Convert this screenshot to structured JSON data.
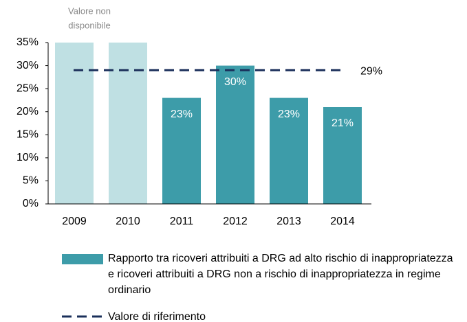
{
  "chart_data": {
    "type": "bar",
    "annotation": [
      "Valore non",
      "disponibile"
    ],
    "categories": [
      "2009",
      "2010",
      "2011",
      "2012",
      "2013",
      "2014"
    ],
    "series": [
      {
        "name": "Rapporto tra ricoveri attribuiti a DRG ad alto rischio di inappropriatezza e ricoveri attribuiti a DRG non a rischio di inappropriatezza in regime ordinario",
        "color": "#3d9ca9",
        "unavailable_color": "#bfe0e3",
        "values": [
          null,
          null,
          23,
          30,
          23,
          21
        ],
        "value_labels": [
          null,
          null,
          "23%",
          "30%",
          "23%",
          "21%"
        ]
      }
    ],
    "reference": {
      "name": "Valore di riferimento",
      "value": 29,
      "label": "29%",
      "color": "#1a2f5a"
    },
    "ylim": [
      0,
      35
    ],
    "yticks": [
      {
        "value": 0,
        "label": "0%"
      },
      {
        "value": 5,
        "label": "5%"
      },
      {
        "value": 10,
        "label": "10%"
      },
      {
        "value": 15,
        "label": "15%"
      },
      {
        "value": 20,
        "label": "20%"
      },
      {
        "value": 25,
        "label": "25%"
      },
      {
        "value": 30,
        "label": "30%"
      },
      {
        "value": 35,
        "label": "35%"
      }
    ]
  }
}
